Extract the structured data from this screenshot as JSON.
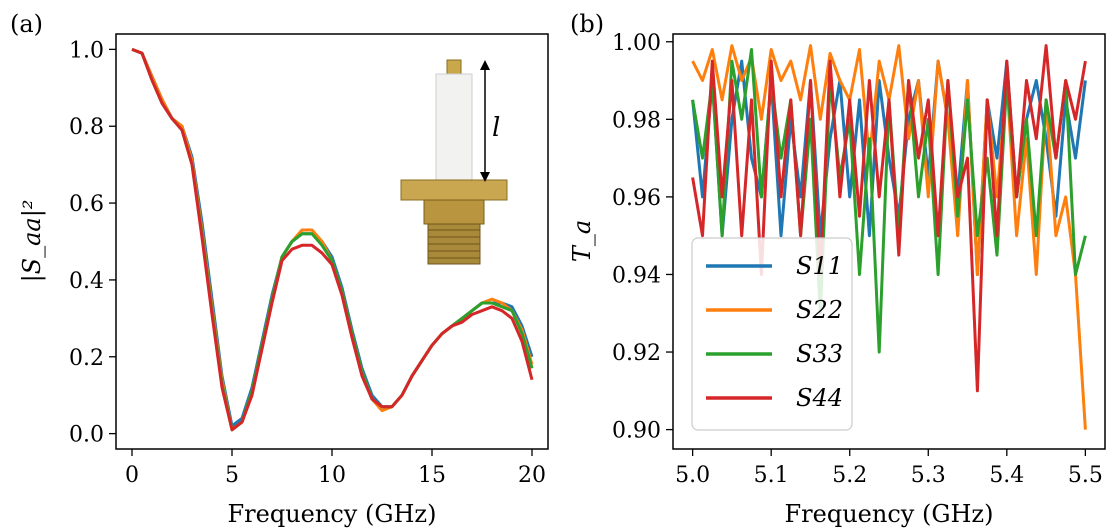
{
  "chart_data": [
    {
      "panel_label": "(a)",
      "type": "line",
      "xlabel": "Frequency (GHz)",
      "ylabel": "|S_aa|²",
      "xlim": [
        -0.8,
        20.8
      ],
      "ylim": [
        -0.04,
        1.04
      ],
      "xticks": [
        0,
        5,
        10,
        15,
        20
      ],
      "yticks": [
        0.0,
        0.2,
        0.4,
        0.6,
        0.8,
        1.0
      ],
      "xtick_labels": [
        "0",
        "5",
        "10",
        "15",
        "20"
      ],
      "ytick_labels": [
        "0.0",
        "0.2",
        "0.4",
        "0.6",
        "0.8",
        "1.0"
      ],
      "inset": {
        "description_label": "l"
      },
      "x": [
        0,
        0.5,
        1,
        1.5,
        2,
        2.5,
        3,
        3.5,
        4,
        4.5,
        5,
        5.5,
        6,
        6.5,
        7,
        7.5,
        8,
        8.5,
        9,
        9.5,
        10,
        10.5,
        11,
        11.5,
        12,
        12.5,
        13,
        13.5,
        14,
        14.5,
        15,
        15.5,
        16,
        16.5,
        17,
        17.5,
        18,
        18.5,
        19,
        19.5,
        20
      ],
      "series": [
        {
          "name": "S11",
          "color": "#1f77b4",
          "values": [
            1.0,
            0.99,
            0.93,
            0.87,
            0.82,
            0.8,
            0.72,
            0.55,
            0.35,
            0.15,
            0.02,
            0.04,
            0.12,
            0.24,
            0.36,
            0.46,
            0.5,
            0.52,
            0.52,
            0.5,
            0.46,
            0.38,
            0.27,
            0.17,
            0.1,
            0.07,
            0.07,
            0.1,
            0.15,
            0.19,
            0.23,
            0.26,
            0.28,
            0.3,
            0.32,
            0.34,
            0.34,
            0.34,
            0.33,
            0.28,
            0.2
          ]
        },
        {
          "name": "S22",
          "color": "#ff7f0e",
          "values": [
            1.0,
            0.99,
            0.93,
            0.87,
            0.82,
            0.8,
            0.71,
            0.53,
            0.33,
            0.14,
            0.01,
            0.03,
            0.11,
            0.23,
            0.35,
            0.46,
            0.5,
            0.53,
            0.53,
            0.5,
            0.45,
            0.37,
            0.26,
            0.16,
            0.09,
            0.06,
            0.07,
            0.1,
            0.15,
            0.19,
            0.23,
            0.26,
            0.28,
            0.3,
            0.32,
            0.34,
            0.35,
            0.34,
            0.32,
            0.27,
            0.18
          ]
        },
        {
          "name": "S33",
          "color": "#2ca02c",
          "values": [
            1.0,
            0.99,
            0.92,
            0.86,
            0.82,
            0.79,
            0.7,
            0.52,
            0.32,
            0.13,
            0.01,
            0.03,
            0.11,
            0.23,
            0.35,
            0.46,
            0.5,
            0.52,
            0.52,
            0.49,
            0.45,
            0.37,
            0.26,
            0.16,
            0.09,
            0.07,
            0.07,
            0.1,
            0.15,
            0.19,
            0.23,
            0.26,
            0.28,
            0.3,
            0.32,
            0.34,
            0.34,
            0.33,
            0.32,
            0.26,
            0.17
          ]
        },
        {
          "name": "S44",
          "color": "#d62728",
          "values": [
            1.0,
            0.99,
            0.92,
            0.86,
            0.82,
            0.79,
            0.7,
            0.51,
            0.31,
            0.12,
            0.01,
            0.03,
            0.1,
            0.22,
            0.34,
            0.45,
            0.48,
            0.49,
            0.49,
            0.47,
            0.44,
            0.36,
            0.25,
            0.15,
            0.09,
            0.07,
            0.07,
            0.1,
            0.15,
            0.19,
            0.23,
            0.26,
            0.28,
            0.29,
            0.31,
            0.32,
            0.33,
            0.32,
            0.3,
            0.24,
            0.14
          ]
        }
      ]
    },
    {
      "panel_label": "(b)",
      "type": "line",
      "xlabel": "Frequency (GHz)",
      "ylabel": "T_a",
      "xlim": [
        4.975,
        5.525
      ],
      "ylim": [
        0.895,
        1.002
      ],
      "xticks": [
        5.0,
        5.1,
        5.2,
        5.3,
        5.4,
        5.5
      ],
      "yticks": [
        0.9,
        0.92,
        0.94,
        0.96,
        0.98,
        1.0
      ],
      "xtick_labels": [
        "5.0",
        "5.1",
        "5.2",
        "5.3",
        "5.4",
        "5.5"
      ],
      "ytick_labels": [
        "0.90",
        "0.92",
        "0.94",
        "0.96",
        "0.98",
        "1.00"
      ],
      "legend_placement": "lower-left",
      "x": [
        5.0,
        5.0125,
        5.025,
        5.0375,
        5.05,
        5.0625,
        5.075,
        5.0875,
        5.1,
        5.1125,
        5.125,
        5.1375,
        5.15,
        5.1625,
        5.175,
        5.1875,
        5.2,
        5.2125,
        5.225,
        5.2375,
        5.25,
        5.2625,
        5.275,
        5.2875,
        5.3,
        5.3125,
        5.325,
        5.3375,
        5.35,
        5.3625,
        5.375,
        5.3875,
        5.4,
        5.4125,
        5.425,
        5.4375,
        5.45,
        5.4625,
        5.475,
        5.4875,
        5.5
      ],
      "series": [
        {
          "name": "S11",
          "color": "#1f77b4",
          "values": [
            0.985,
            0.96,
            0.99,
            0.95,
            0.98,
            0.995,
            0.97,
            0.96,
            0.99,
            0.95,
            0.98,
            0.96,
            0.99,
            0.95,
            0.975,
            0.99,
            0.96,
            0.985,
            0.95,
            0.99,
            0.97,
            0.955,
            0.98,
            0.99,
            0.965,
            0.995,
            0.98,
            0.96,
            0.99,
            0.94,
            0.985,
            0.97,
            0.995,
            0.96,
            0.98,
            0.99,
            0.975,
            0.955,
            0.985,
            0.97,
            0.99
          ]
        },
        {
          "name": "S22",
          "color": "#ff7f0e",
          "values": [
            0.995,
            0.99,
            0.998,
            0.985,
            0.999,
            0.99,
            0.996,
            0.98,
            0.998,
            0.99,
            0.995,
            0.985,
            0.999,
            0.98,
            0.997,
            0.99,
            0.985,
            0.998,
            0.97,
            0.995,
            0.985,
            0.999,
            0.975,
            0.99,
            0.96,
            0.995,
            0.98,
            0.95,
            0.99,
            0.94,
            0.985,
            0.96,
            0.99,
            0.95,
            0.975,
            0.94,
            0.985,
            0.95,
            0.96,
            0.94,
            0.9
          ]
        },
        {
          "name": "S33",
          "color": "#2ca02c",
          "values": [
            0.985,
            0.97,
            0.99,
            0.95,
            0.995,
            0.98,
            0.998,
            0.96,
            0.99,
            0.97,
            0.985,
            0.95,
            0.98,
            0.93,
            0.99,
            0.965,
            0.98,
            0.94,
            0.975,
            0.92,
            0.985,
            0.95,
            0.99,
            0.96,
            0.98,
            0.94,
            0.99,
            0.955,
            0.985,
            0.95,
            0.97,
            0.945,
            0.99,
            0.96,
            0.98,
            0.95,
            0.985,
            0.97,
            0.99,
            0.94,
            0.95
          ]
        },
        {
          "name": "S44",
          "color": "#d62728",
          "values": [
            0.965,
            0.95,
            0.995,
            0.96,
            0.99,
            0.95,
            0.985,
            0.94,
            0.995,
            0.96,
            0.985,
            0.95,
            0.99,
            0.94,
            0.995,
            0.96,
            0.985,
            0.955,
            0.99,
            0.96,
            0.985,
            0.945,
            0.99,
            0.97,
            0.985,
            0.95,
            0.99,
            0.96,
            0.97,
            0.91,
            0.985,
            0.95,
            0.995,
            0.96,
            0.99,
            0.975,
            0.999,
            0.97,
            0.99,
            0.98,
            0.995
          ]
        }
      ]
    }
  ]
}
